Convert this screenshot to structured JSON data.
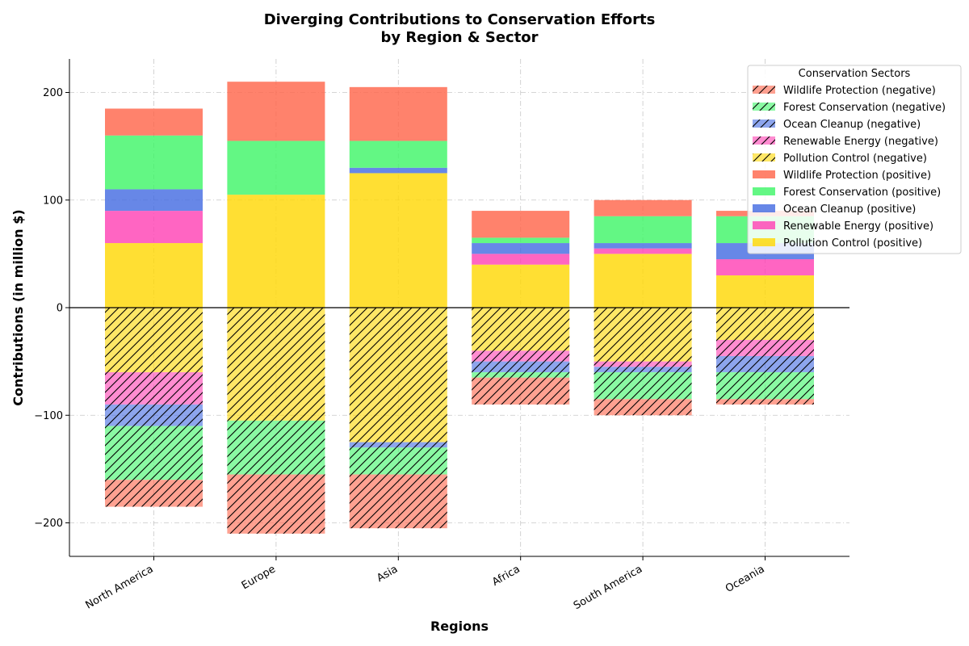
{
  "chart_data": {
    "type": "bar",
    "title_line1": "Diverging Contributions to Conservation Efforts",
    "title_line2": "by Region & Sector",
    "xlabel": "Regions",
    "ylabel": "Contributions (in million $)",
    "categories": [
      "North America",
      "Europe",
      "Asia",
      "Africa",
      "South America",
      "Oceania"
    ],
    "ylim": [
      -230,
      230
    ],
    "yticks": [
      -200,
      -100,
      0,
      100,
      200
    ],
    "ytick_labels": [
      "−200",
      "−100",
      "0",
      "100",
      "200"
    ],
    "grid": "horizontal dash-dot",
    "legend_title": "Conservation Sectors",
    "legend_position": "top-right",
    "series": [
      {
        "name": "Wildlife Protection",
        "color": "#ff6347",
        "values": [
          25,
          55,
          50,
          25,
          15,
          5
        ]
      },
      {
        "name": "Forest Conservation",
        "color": "#3cf565",
        "values": [
          50,
          50,
          25,
          5,
          25,
          25
        ]
      },
      {
        "name": "Ocean Cleanup",
        "color": "#4169e1",
        "values": [
          20,
          0,
          5,
          10,
          5,
          15
        ]
      },
      {
        "name": "Renewable Energy",
        "color": "#ff3fb3",
        "values": [
          30,
          0,
          0,
          10,
          5,
          15
        ]
      },
      {
        "name": "Pollution Control",
        "color": "#ffd700",
        "values": [
          60,
          105,
          125,
          40,
          50,
          30
        ]
      }
    ],
    "legend": [
      "Wildlife Protection (negative)",
      "Forest Conservation (negative)",
      "Ocean Cleanup (negative)",
      "Renewable Energy (negative)",
      "Pollution Control (negative)",
      "Wildlife Protection (positive)",
      "Forest Conservation (positive)",
      "Ocean Cleanup (positive)",
      "Renewable Energy (positive)",
      "Pollution Control (positive)"
    ]
  }
}
